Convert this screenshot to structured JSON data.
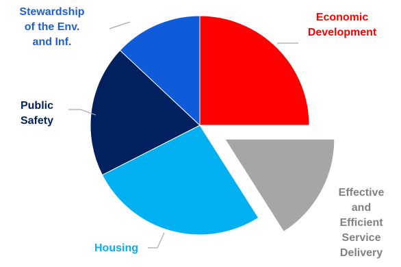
{
  "chart_data": {
    "type": "pie",
    "exploded": "Effective and Efficient Service Delivery",
    "title": "",
    "slices": [
      {
        "name": "Economic Development",
        "label_lines": [
          "Economic",
          "Development"
        ],
        "percent": 25.0,
        "color": "#ff0000"
      },
      {
        "name": "Effective and Efficient Service Delivery",
        "label_lines": [
          "Effective",
          "and",
          "Efficient",
          "Service",
          "Delivery"
        ],
        "percent": 16.0,
        "color": "#a6a6a6"
      },
      {
        "name": "Housing",
        "label_lines": [
          "Housing"
        ],
        "percent": 26.5,
        "color": "#00b0f0"
      },
      {
        "name": "Public Safety",
        "label_lines": [
          "Public",
          "Safety"
        ],
        "percent": 19.5,
        "color": "#002060"
      },
      {
        "name": "Stewardship of the Env. and Inf.",
        "label_lines": [
          "Stewardship",
          "of the Env.",
          "and Inf."
        ],
        "percent": 13.0,
        "color": "#0f5bd9"
      }
    ]
  }
}
